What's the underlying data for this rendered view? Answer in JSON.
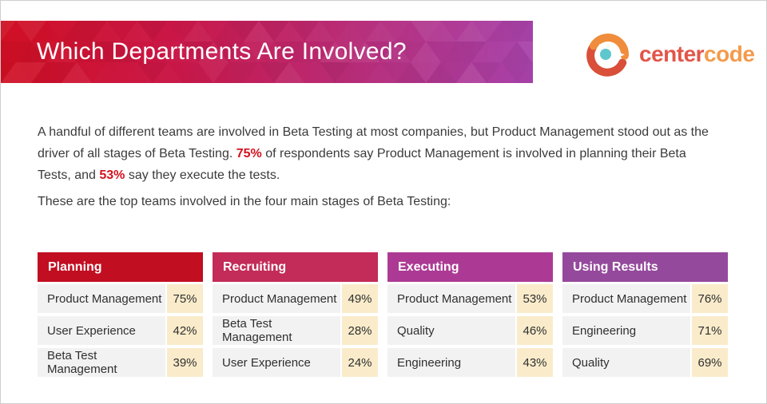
{
  "header": {
    "title": "Which Departments Are Involved?"
  },
  "logo": {
    "brand_part1": "center",
    "brand_part2": "code"
  },
  "intro": {
    "part1": "A handful of different teams are involved in Beta Testing at most companies, but Product Management stood out as the driver of all stages of Beta Testing. ",
    "stat1": "75%",
    "part2": " of respondents say Product Management is involved in planning their Beta Tests, and ",
    "stat2": "53%",
    "part3": " say they execute the tests."
  },
  "subtitle": "These are the top teams involved in the four main stages of Beta Testing:",
  "colors": {
    "accent_red": "#d4111e",
    "row_bg": "#f2f2f2",
    "pct_bg": "#faeccb",
    "banner_gradient": [
      "#d00f23",
      "#ca1747",
      "#b92b75",
      "#a843ab"
    ]
  },
  "chart_data": {
    "type": "table",
    "title": "Top teams involved in the four main stages of Beta Testing",
    "stages": [
      {
        "label": "Planning",
        "header_color": "#c20e21",
        "rows": [
          {
            "team": "Product Management",
            "value": "75%"
          },
          {
            "team": "User Experience",
            "value": "42%"
          },
          {
            "team": "Beta Test Management",
            "value": "39%"
          }
        ]
      },
      {
        "label": "Recruiting",
        "header_color": "#c32b58",
        "rows": [
          {
            "team": "Product Management",
            "value": "49%"
          },
          {
            "team": "Beta Test Management",
            "value": "28%"
          },
          {
            "team": "User Experience",
            "value": "24%"
          }
        ]
      },
      {
        "label": "Executing",
        "header_color": "#ac3a94",
        "rows": [
          {
            "team": "Product Management",
            "value": "53%"
          },
          {
            "team": "Quality",
            "value": "46%"
          },
          {
            "team": "Engineering",
            "value": "43%"
          }
        ]
      },
      {
        "label": "Using Results",
        "header_color": "#95499c",
        "rows": [
          {
            "team": "Product Management",
            "value": "76%"
          },
          {
            "team": "Engineering",
            "value": "71%"
          },
          {
            "team": "Quality",
            "value": "69%"
          }
        ]
      }
    ]
  }
}
